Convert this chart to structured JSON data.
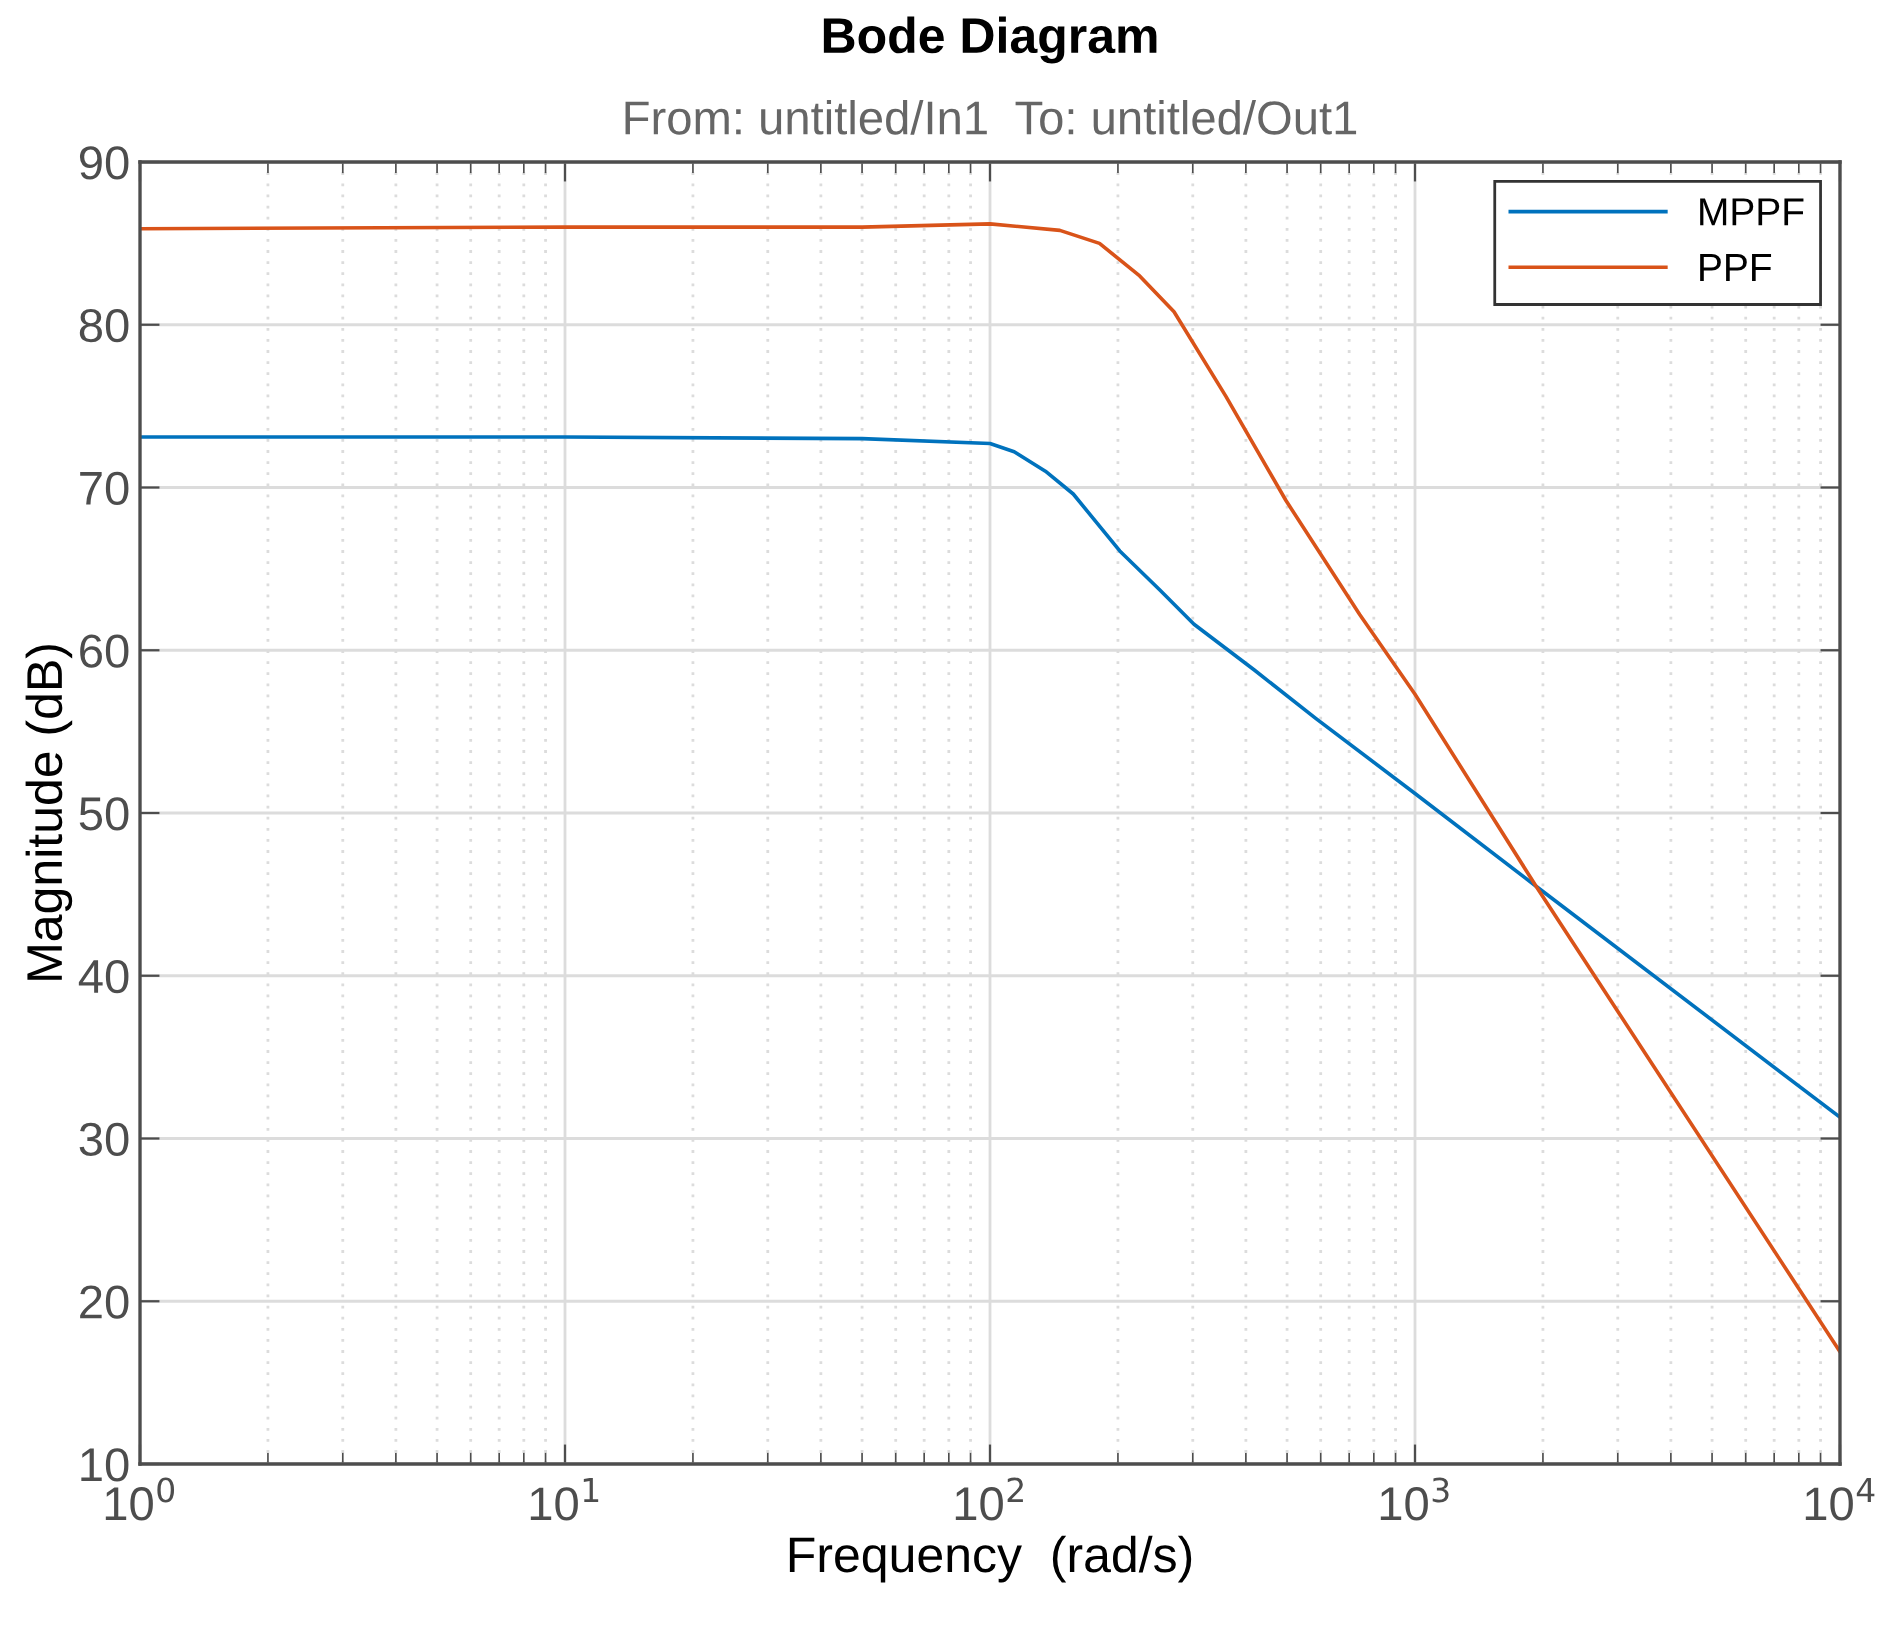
{
  "chart_data": {
    "type": "line",
    "title": "Bode Diagram",
    "subtitle": "From: untitled/In1  To: untitled/Out1",
    "xlabel": "Frequency  (rad/s)",
    "ylabel": "Magnitude (dB)",
    "log": "x",
    "xlim": [
      1,
      10000
    ],
    "xticks": [
      {
        "value": 1,
        "label": "10$^{0}$"
      },
      {
        "value": 10,
        "label": "10$^{1}$"
      },
      {
        "value": 100,
        "label": "10$^{2}$"
      },
      {
        "value": 1000,
        "label": "10$^{3}$"
      },
      {
        "value": 10000,
        "label": "10$^{4}$"
      }
    ],
    "ylim": [
      10,
      90
    ],
    "yticks": [
      10,
      20,
      30,
      40,
      50,
      60,
      70,
      80,
      90
    ],
    "grid": true,
    "legend": "top right",
    "series": [
      {
        "name": "MPPF",
        "color": "#0072bd",
        "x": [
          1,
          10,
          50,
          100,
          114,
          135,
          157,
          202,
          251,
          302,
          418,
          585,
          1000,
          1927,
          10000
        ],
        "values": [
          73.1,
          73.1,
          73.0,
          72.7,
          72.2,
          71.0,
          69.6,
          66.1,
          63.7,
          61.6,
          58.8,
          55.8,
          51.2,
          45.5,
          31.3
        ]
      },
      {
        "name": "PPF",
        "color": "#d95319",
        "x": [
          1,
          10,
          50,
          100,
          146,
          181,
          225,
          271,
          359,
          497,
          741,
          1000,
          1927,
          10000
        ],
        "values": [
          85.9,
          86.0,
          86.0,
          86.2,
          85.8,
          85.0,
          83.0,
          80.8,
          75.6,
          69.2,
          62.2,
          57.3,
          45.5,
          16.9
        ]
      }
    ]
  }
}
